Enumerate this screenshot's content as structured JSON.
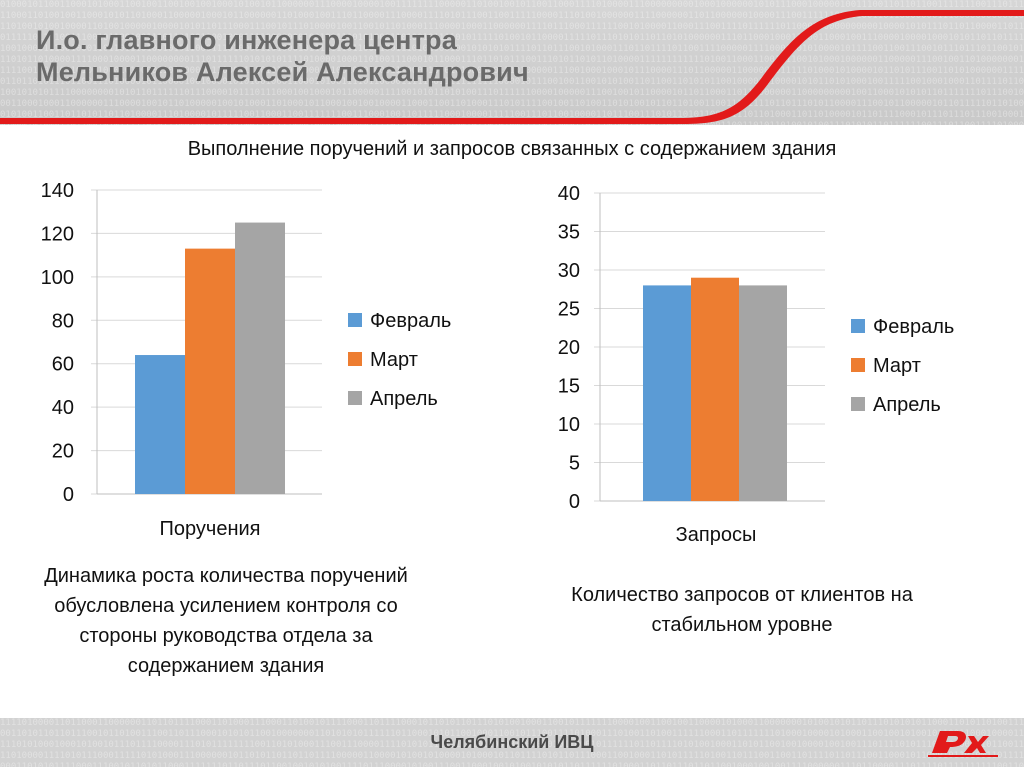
{
  "header": {
    "title_line1": "И.о. главного инженера центра",
    "title_line2": "Мельников Алексей Александрович"
  },
  "main_title": "Выполнение поручений и запросов связанных с содержанием здания",
  "chart_data": [
    {
      "type": "bar",
      "categories": [
        "Поручения"
      ],
      "series": [
        {
          "name": "Февраль",
          "values": [
            64
          ],
          "color": "#5b9bd5"
        },
        {
          "name": "Март",
          "values": [
            113
          ],
          "color": "#ed7d31"
        },
        {
          "name": "Апрель",
          "values": [
            125
          ],
          "color": "#a5a5a5"
        }
      ],
      "ylim": [
        0,
        140
      ],
      "yticks": [
        0,
        20,
        40,
        60,
        80,
        100,
        120,
        140
      ],
      "title": "",
      "xlabel": "",
      "ylabel": "",
      "legend": "right",
      "grid": true
    },
    {
      "type": "bar",
      "categories": [
        "Запросы"
      ],
      "series": [
        {
          "name": "Февраль",
          "values": [
            28
          ],
          "color": "#5b9bd5"
        },
        {
          "name": "Март",
          "values": [
            29
          ],
          "color": "#ed7d31"
        },
        {
          "name": "Апрель",
          "values": [
            28
          ],
          "color": "#a5a5a5"
        }
      ],
      "ylim": [
        0,
        40
      ],
      "yticks": [
        0,
        5,
        10,
        15,
        20,
        25,
        30,
        35,
        40
      ],
      "title": "",
      "xlabel": "",
      "ylabel": "",
      "legend": "right",
      "grid": true
    }
  ],
  "captions": {
    "left": "Динамика роста количества поручений обусловлена усилением контроля со стороны руководства отдела за содержанием здания",
    "right": "Количество запросов от клиентов на стабильном уровне"
  },
  "footer": {
    "text": "Челябинский ИВЦ",
    "logo_label": "РЖД logo",
    "accent_color": "#e21a1a"
  }
}
